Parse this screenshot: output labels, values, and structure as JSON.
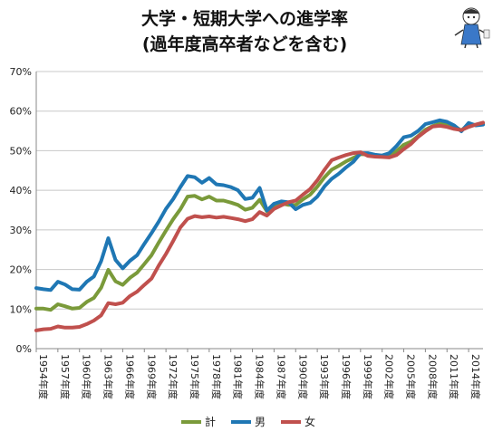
{
  "chart_data": {
    "type": "line",
    "title": "大学・短期大学への進学率",
    "subtitle": "(過年度高卒者などを含む)",
    "xlabel": "",
    "ylabel": "",
    "ylim": [
      0,
      70
    ],
    "yticks": [
      "0%",
      "10%",
      "20%",
      "30%",
      "40%",
      "50%",
      "60%",
      "70%"
    ],
    "grid": true,
    "legend_position": "bottom",
    "x": [
      1954,
      1955,
      1956,
      1957,
      1958,
      1959,
      1960,
      1961,
      1962,
      1963,
      1964,
      1965,
      1966,
      1967,
      1968,
      1969,
      1970,
      1971,
      1972,
      1973,
      1974,
      1975,
      1976,
      1977,
      1978,
      1979,
      1980,
      1981,
      1982,
      1983,
      1984,
      1985,
      1986,
      1987,
      1988,
      1989,
      1990,
      1991,
      1992,
      1993,
      1994,
      1995,
      1996,
      1997,
      1998,
      1999,
      2000,
      2001,
      2002,
      2003,
      2004,
      2005,
      2006,
      2007,
      2008,
      2009,
      2010,
      2011,
      2012,
      2013,
      2014,
      2015,
      2016
    ],
    "xtick_labels": [
      "1954年度",
      "1957年度",
      "1960年度",
      "1963年度",
      "1966年度",
      "1969年度",
      "1972年度",
      "1975年度",
      "1978年度",
      "1981年度",
      "1984年度",
      "1987年度",
      "1990年度",
      "1993年度",
      "1996年度",
      "1999年度",
      "2002年度",
      "2005年度",
      "2008年度",
      "2011年度",
      "2014年度"
    ],
    "series": [
      {
        "name": "計",
        "color": "#7a9a3a",
        "values": [
          10.1,
          10.1,
          9.8,
          11.2,
          10.7,
          10.1,
          10.3,
          11.8,
          12.8,
          15.4,
          19.9,
          17.0,
          16.1,
          17.9,
          19.2,
          21.4,
          23.6,
          26.8,
          29.8,
          32.7,
          35.2,
          38.4,
          38.6,
          37.7,
          38.4,
          37.4,
          37.4,
          36.9,
          36.3,
          35.1,
          35.6,
          37.6,
          34.7,
          36.1,
          36.7,
          36.3,
          36.3,
          37.7,
          38.9,
          40.9,
          43.3,
          45.2,
          46.2,
          47.3,
          48.2,
          49.1,
          49.1,
          48.6,
          48.6,
          49.0,
          49.9,
          51.5,
          52.3,
          53.7,
          55.3,
          56.2,
          56.8,
          56.7,
          56.2,
          55.1,
          56.7,
          56.5,
          56.8
        ]
      },
      {
        "name": "男",
        "color": "#1f77b4",
        "values": [
          15.3,
          15.0,
          14.8,
          16.9,
          16.2,
          15.0,
          14.9,
          16.9,
          18.2,
          22.1,
          27.9,
          22.4,
          20.3,
          22.2,
          23.6,
          26.5,
          29.2,
          32.1,
          35.3,
          37.8,
          40.8,
          43.6,
          43.3,
          41.9,
          43.1,
          41.5,
          41.3,
          40.8,
          40.0,
          37.8,
          38.1,
          40.6,
          34.9,
          36.6,
          37.2,
          37.0,
          35.2,
          36.3,
          36.8,
          38.4,
          41.0,
          42.9,
          44.2,
          45.8,
          47.2,
          49.4,
          49.4,
          49.0,
          48.8,
          49.4,
          51.2,
          53.4,
          53.8,
          55.0,
          56.7,
          57.2,
          57.7,
          57.3,
          56.4,
          54.9,
          57.0,
          56.4,
          56.6
        ]
      },
      {
        "name": "女",
        "color": "#c0504d",
        "values": [
          4.6,
          4.9,
          5.0,
          5.6,
          5.3,
          5.3,
          5.5,
          6.2,
          7.1,
          8.4,
          11.5,
          11.2,
          11.6,
          13.3,
          14.4,
          16.1,
          17.7,
          21.0,
          23.9,
          27.2,
          30.6,
          32.8,
          33.5,
          33.2,
          33.4,
          33.1,
          33.3,
          33.0,
          32.7,
          32.2,
          32.7,
          34.5,
          33.6,
          35.3,
          36.2,
          37.0,
          37.4,
          38.9,
          40.3,
          42.5,
          45.2,
          47.6,
          48.3,
          48.9,
          49.4,
          49.6,
          48.7,
          48.5,
          48.4,
          48.3,
          48.9,
          50.4,
          51.7,
          53.5,
          54.9,
          56.1,
          56.3,
          56.0,
          55.5,
          55.2,
          56.0,
          56.6,
          57.1
        ]
      }
    ]
  }
}
